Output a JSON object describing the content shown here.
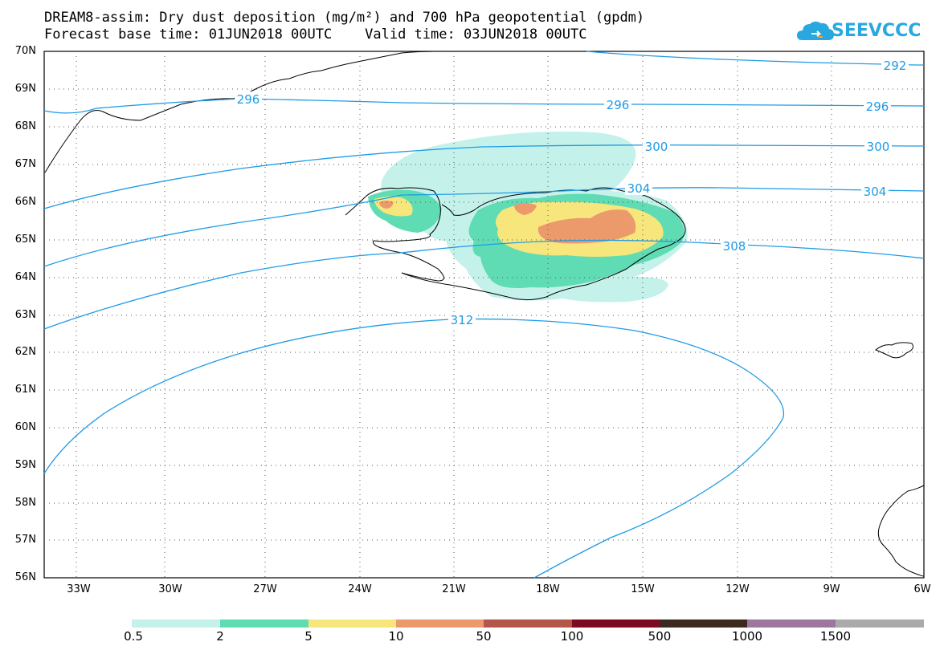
{
  "title": {
    "line1": "DREAM8-assim: Dry dust deposition (mg/m²) and 700 hPa geopotential (gpdm)",
    "line2": "Forecast base time: 01JUN2018 00UTC    Valid time: 03JUN2018 00UTC"
  },
  "logo": {
    "text": "SEEVCCC",
    "color": "#29a8e0"
  },
  "lat_labels": [
    "70N",
    "69N",
    "68N",
    "67N",
    "66N",
    "65N",
    "64N",
    "63N",
    "62N",
    "61N",
    "60N",
    "59N",
    "58N",
    "57N",
    "56N"
  ],
  "lon_labels": [
    "33W",
    "30W",
    "27W",
    "24W",
    "21W",
    "18W",
    "15W",
    "12W",
    "9W",
    "6W"
  ],
  "contour_labels": [
    "292",
    "296",
    "296",
    "296",
    "300",
    "300",
    "304",
    "304",
    "308",
    "312"
  ],
  "contour_color": "#1e9be6",
  "colorbar": {
    "colors": [
      "#c4f2ea",
      "#5fdcb3",
      "#f7e67b",
      "#ec9a6c",
      "#b3574a",
      "#7e0a22",
      "#3d2a1e",
      "#9d77a0",
      "#aaaaaa"
    ],
    "labels": [
      "0.5",
      "2",
      "5",
      "10",
      "50",
      "100",
      "500",
      "1000",
      "1500"
    ]
  }
}
